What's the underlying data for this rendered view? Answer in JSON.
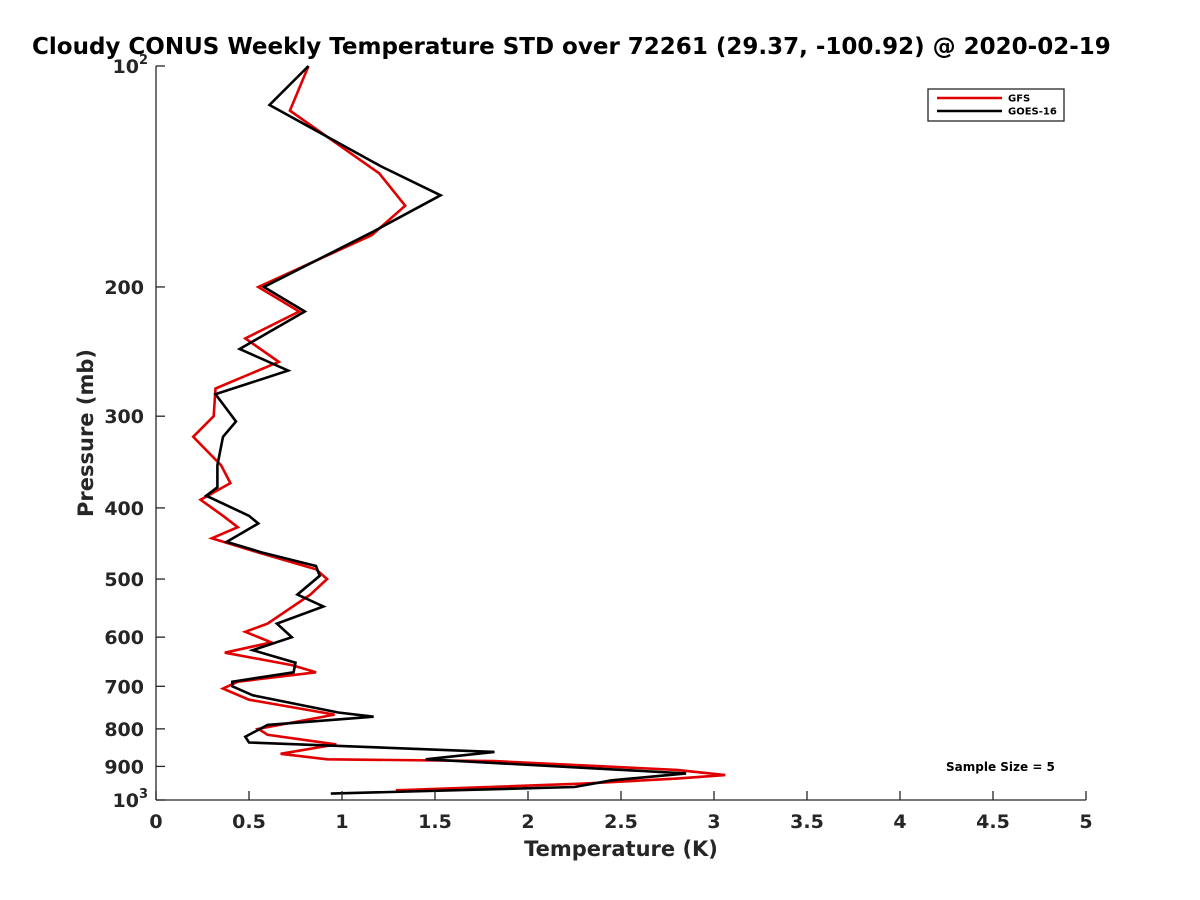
{
  "chart_data": {
    "type": "line",
    "title": "Cloudy CONUS Weekly Temperature STD over 72261 (29.37, -100.92) @ 2020-02-19",
    "xlabel": "Temperature (K)",
    "ylabel": "Pressure (mb)",
    "xlim": [
      0,
      5
    ],
    "ylim": [
      100,
      1000
    ],
    "y_scale": "log",
    "y_reversed": true,
    "x_ticks": [
      "0",
      "0.5",
      "1",
      "1.5",
      "2",
      "2.5",
      "3",
      "3.5",
      "4",
      "4.5",
      "5"
    ],
    "y_ticks": [
      {
        "value": 200,
        "label": "200"
      },
      {
        "value": 300,
        "label": "300"
      },
      {
        "value": 400,
        "label": "400"
      },
      {
        "value": 500,
        "label": "500"
      },
      {
        "value": 600,
        "label": "600"
      },
      {
        "value": 700,
        "label": "700"
      },
      {
        "value": 800,
        "label": "800"
      },
      {
        "value": 900,
        "label": "900"
      }
    ],
    "y_end_ticks": [
      {
        "value": 100,
        "base": "10",
        "exp": "2"
      },
      {
        "value": 1000,
        "base": "10",
        "exp": "3"
      }
    ],
    "grid": false,
    "legend_position": "top-right",
    "annotation": "Sample Size = 5",
    "series": [
      {
        "name": "GFS",
        "color": "#e00000",
        "points": [
          [
            0.82,
            100
          ],
          [
            0.72,
            115
          ],
          [
            1.2,
            140
          ],
          [
            1.34,
            155
          ],
          [
            1.16,
            170
          ],
          [
            0.55,
            200
          ],
          [
            0.77,
            216
          ],
          [
            0.48,
            235
          ],
          [
            0.66,
            253
          ],
          [
            0.32,
            275
          ],
          [
            0.31,
            300
          ],
          [
            0.2,
            320
          ],
          [
            0.35,
            350
          ],
          [
            0.4,
            370
          ],
          [
            0.24,
            390
          ],
          [
            0.36,
            410
          ],
          [
            0.44,
            425
          ],
          [
            0.3,
            440
          ],
          [
            0.55,
            460
          ],
          [
            0.86,
            485
          ],
          [
            0.92,
            500
          ],
          [
            0.83,
            525
          ],
          [
            0.6,
            575
          ],
          [
            0.48,
            590
          ],
          [
            0.62,
            610
          ],
          [
            0.37,
            630
          ],
          [
            0.73,
            655
          ],
          [
            0.86,
            670
          ],
          [
            0.44,
            690
          ],
          [
            0.36,
            705
          ],
          [
            0.5,
            730
          ],
          [
            0.96,
            765
          ],
          [
            0.55,
            800
          ],
          [
            0.6,
            815
          ],
          [
            0.97,
            840
          ],
          [
            0.67,
            865
          ],
          [
            0.92,
            880
          ],
          [
            1.82,
            885
          ],
          [
            2.8,
            910
          ],
          [
            3.06,
            925
          ],
          [
            2.8,
            935
          ],
          [
            2.3,
            950
          ],
          [
            1.29,
            970
          ]
        ]
      },
      {
        "name": "GOES-16",
        "color": "#000000",
        "points": [
          [
            0.82,
            100
          ],
          [
            0.61,
            113
          ],
          [
            1.21,
            137
          ],
          [
            1.53,
            150
          ],
          [
            1.17,
            168
          ],
          [
            0.58,
            200
          ],
          [
            0.8,
            216
          ],
          [
            0.45,
            243
          ],
          [
            0.71,
            260
          ],
          [
            0.32,
            280
          ],
          [
            0.43,
            305
          ],
          [
            0.36,
            320
          ],
          [
            0.33,
            350
          ],
          [
            0.33,
            375
          ],
          [
            0.27,
            385
          ],
          [
            0.5,
            410
          ],
          [
            0.55,
            420
          ],
          [
            0.38,
            445
          ],
          [
            0.57,
            460
          ],
          [
            0.86,
            480
          ],
          [
            0.88,
            495
          ],
          [
            0.76,
            525
          ],
          [
            0.9,
            545
          ],
          [
            0.65,
            575
          ],
          [
            0.73,
            600
          ],
          [
            0.52,
            625
          ],
          [
            0.75,
            650
          ],
          [
            0.74,
            670
          ],
          [
            0.41,
            690
          ],
          [
            0.41,
            700
          ],
          [
            0.52,
            720
          ],
          [
            0.98,
            760
          ],
          [
            1.17,
            770
          ],
          [
            0.6,
            790
          ],
          [
            0.48,
            820
          ],
          [
            0.5,
            835
          ],
          [
            1.82,
            860
          ],
          [
            1.45,
            880
          ],
          [
            2.85,
            920
          ],
          [
            2.45,
            940
          ],
          [
            2.25,
            960
          ],
          [
            0.94,
            980
          ]
        ]
      }
    ]
  }
}
